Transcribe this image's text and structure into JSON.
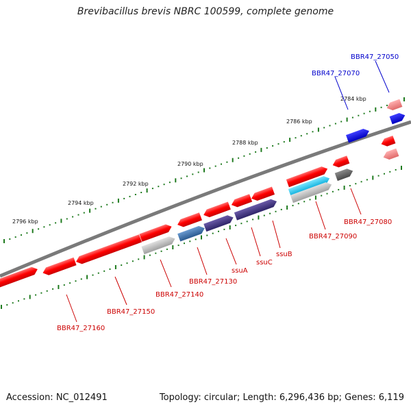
{
  "title": "Brevibacillus brevis NBRC 100599, complete genome",
  "footer": {
    "accession": "Accession: NC_012491",
    "stats": "Topology: circular; Length: 6,296,436 bp; Genes: 6,119"
  },
  "colors": {
    "backbone": "#7a7a7a",
    "tick": "#1e7a1e",
    "cds_red": "#ff1a1a",
    "cds_blue": "#0000e0",
    "label_red": "#cc0000",
    "label_blue": "#0000cc"
  },
  "kbp_labels": [
    {
      "text": "2784 kbp"
    },
    {
      "text": "2786 kbp"
    },
    {
      "text": "2788 kbp"
    },
    {
      "text": "2790 kbp"
    },
    {
      "text": "2792 kbp"
    },
    {
      "text": "2794 kbp"
    },
    {
      "text": "2796 kbp"
    }
  ],
  "gene_labels": [
    {
      "text": "BBR47_27050",
      "color": "blue"
    },
    {
      "text": "BBR47_27070",
      "color": "blue"
    },
    {
      "text": "BBR47_27080",
      "color": "red"
    },
    {
      "text": "BBR47_27090",
      "color": "red"
    },
    {
      "text": "ssuB",
      "color": "red"
    },
    {
      "text": "ssuC",
      "color": "red"
    },
    {
      "text": "ssuA",
      "color": "red"
    },
    {
      "text": "BBR47_27130",
      "color": "red"
    },
    {
      "text": "BBR47_27140",
      "color": "red"
    },
    {
      "text": "BBR47_27150",
      "color": "red"
    },
    {
      "text": "BBR47_27160",
      "color": "red"
    }
  ]
}
